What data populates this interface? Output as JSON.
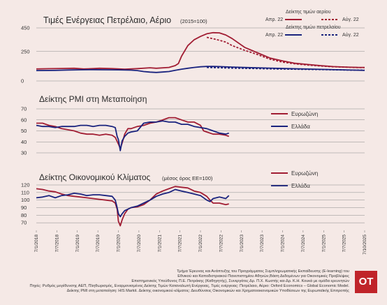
{
  "colors": {
    "red": "#a11d33",
    "navy": "#1a237e",
    "grid": "#8b8b8b",
    "bg": "#f5e9e6",
    "logo_bg": "#c0242a"
  },
  "x_axis": {
    "labels": [
      "7/1/2018",
      "7/7/2018",
      "7/1/2019",
      "7/7/2019",
      "7/1/2020",
      "7/7/2020",
      "7/1/2021",
      "7/7/2021",
      "7/1/2022",
      "7/7/2022",
      "7/1/2023",
      "7/7/2023",
      "7/1/2024",
      "7/7/2024",
      "7/1/2025",
      "7/7/2025",
      "7/10/2025"
    ]
  },
  "legend": {
    "energy_gas_title": "Δείκτης τιμών αερίου",
    "energy_oil_title": "Δείκτης τιμών πετρελαίου",
    "apr": "Απρ. 22",
    "aug": "Αύγ. 22",
    "eurozone": "Ευρωζώνη",
    "greece": "Ελλάδα"
  },
  "chart_data": [
    {
      "type": "line",
      "title": "Τιμές Ενέργειας Πετρέλαιο, Αέριο",
      "subtitle": "(2015=100)",
      "ylim": [
        0,
        450
      ],
      "yticks": [
        450,
        250,
        0
      ],
      "series": [
        {
          "name": "Δείκτης τιμών αερίου — Απρ. 22",
          "color": "#a11d33",
          "dash": false,
          "points": [
            [
              0,
              102
            ],
            [
              2,
              104
            ],
            [
              4,
              106
            ],
            [
              6,
              108
            ],
            [
              7.5,
              102
            ],
            [
              9,
              105
            ],
            [
              10,
              108
            ],
            [
              12,
              105
            ],
            [
              14,
              100
            ],
            [
              16,
              105
            ],
            [
              18,
              112
            ],
            [
              19,
              108
            ],
            [
              21,
              115
            ],
            [
              22,
              130
            ],
            [
              22.5,
              148
            ],
            [
              23,
              210
            ],
            [
              24,
              300
            ],
            [
              25,
              350
            ],
            [
              26,
              378
            ],
            [
              27,
              400
            ],
            [
              28,
              410
            ],
            [
              29,
              408
            ],
            [
              30,
              390
            ],
            [
              31,
              360
            ],
            [
              33,
              285
            ],
            [
              35,
              240
            ],
            [
              37,
              195
            ],
            [
              39,
              170
            ],
            [
              41,
              150
            ],
            [
              43,
              140
            ],
            [
              45,
              130
            ],
            [
              47,
              122
            ],
            [
              49,
              118
            ],
            [
              51,
              115
            ],
            [
              52,
              115
            ]
          ]
        },
        {
          "name": "Δείκτης τιμών αερίου — Αύγ. 22",
          "color": "#a11d33",
          "dash": true,
          "points": [
            [
              27,
              370
            ],
            [
              28,
              358
            ],
            [
              29,
              345
            ],
            [
              30,
              330
            ],
            [
              31,
              300
            ],
            [
              33,
              260
            ],
            [
              35,
              225
            ],
            [
              37,
              185
            ],
            [
              39,
              160
            ],
            [
              41,
              145
            ],
            [
              43,
              135
            ],
            [
              45,
              127
            ],
            [
              47,
              120
            ],
            [
              49,
              117
            ],
            [
              51,
              113
            ],
            [
              52,
              113
            ]
          ]
        },
        {
          "name": "Δείκτης τιμών πετρελαίου — Απρ. 22",
          "color": "#1a237e",
          "dash": false,
          "points": [
            [
              0,
              88
            ],
            [
              3,
              90
            ],
            [
              5,
              93
            ],
            [
              7,
              95
            ],
            [
              9,
              96
            ],
            [
              11,
              95
            ],
            [
              13,
              94
            ],
            [
              15,
              92
            ],
            [
              16,
              88
            ],
            [
              17,
              80
            ],
            [
              18,
              75
            ],
            [
              19,
              72
            ],
            [
              20,
              76
            ],
            [
              21,
              80
            ],
            [
              22,
              90
            ],
            [
              23,
              100
            ],
            [
              24,
              108
            ],
            [
              25,
              115
            ],
            [
              26,
              120
            ],
            [
              27,
              123
            ],
            [
              28,
              124
            ],
            [
              29,
              122
            ],
            [
              31,
              118
            ],
            [
              33,
              114
            ],
            [
              36,
              110
            ],
            [
              40,
              105
            ],
            [
              44,
              100
            ],
            [
              48,
              95
            ],
            [
              52,
              90
            ]
          ]
        },
        {
          "name": "Δείκτης τιμών πετρελαίου — Αύγ. 22",
          "color": "#1a237e",
          "dash": true,
          "points": [
            [
              27,
              115
            ],
            [
              29,
              112
            ],
            [
              31,
              109
            ],
            [
              34,
              106
            ],
            [
              38,
              102
            ],
            [
              42,
              99
            ],
            [
              46,
              96
            ],
            [
              50,
              92
            ],
            [
              52,
              91
            ]
          ]
        }
      ]
    },
    {
      "type": "line",
      "title": "Δείκτης PMI στη Μεταποίηση",
      "ylim": [
        30,
        70
      ],
      "yticks": [
        70,
        60,
        50,
        40,
        30
      ],
      "series": [
        {
          "name": "Ευρωζώνη",
          "color": "#a11d33",
          "points": [
            [
              0,
              57
            ],
            [
              1,
              57
            ],
            [
              2,
              55
            ],
            [
              3,
              54
            ],
            [
              4,
              52
            ],
            [
              5,
              51
            ],
            [
              6,
              50
            ],
            [
              7,
              48
            ],
            [
              8,
              47
            ],
            [
              9,
              47
            ],
            [
              10,
              46
            ],
            [
              11,
              47
            ],
            [
              12,
              46
            ],
            [
              12.5,
              44
            ],
            [
              13,
              38
            ],
            [
              13.3,
              34
            ],
            [
              13.6,
              39
            ],
            [
              14,
              47
            ],
            [
              14.5,
              52
            ],
            [
              15,
              52
            ],
            [
              16,
              54
            ],
            [
              17,
              55
            ],
            [
              18,
              57
            ],
            [
              19,
              58
            ],
            [
              20,
              60
            ],
            [
              21,
              62
            ],
            [
              22,
              62
            ],
            [
              23,
              60
            ],
            [
              24,
              58
            ],
            [
              25,
              58
            ],
            [
              26,
              55
            ],
            [
              26.5,
              50
            ],
            [
              27,
              49
            ],
            [
              28,
              47
            ],
            [
              29,
              47
            ],
            [
              30,
              46
            ],
            [
              30.5,
              45
            ]
          ]
        },
        {
          "name": "Ελλάδα",
          "color": "#1a237e",
          "points": [
            [
              0,
              55
            ],
            [
              1,
              54
            ],
            [
              2,
              54
            ],
            [
              3,
              53
            ],
            [
              4,
              54
            ],
            [
              5,
              54
            ],
            [
              6,
              54
            ],
            [
              7,
              55
            ],
            [
              8,
              55
            ],
            [
              9,
              54
            ],
            [
              10,
              55
            ],
            [
              11,
              55
            ],
            [
              12,
              54
            ],
            [
              12.5,
              53
            ],
            [
              12.8,
              45
            ],
            [
              13,
              42
            ],
            [
              13.3,
              32
            ],
            [
              13.6,
              41
            ],
            [
              14,
              45
            ],
            [
              14.5,
              48
            ],
            [
              15,
              49
            ],
            [
              16,
              50
            ],
            [
              17,
              57
            ],
            [
              18,
              58
            ],
            [
              19,
              58
            ],
            [
              20,
              59
            ],
            [
              21,
              58
            ],
            [
              22,
              58
            ],
            [
              23,
              56
            ],
            [
              24,
              56
            ],
            [
              25,
              54
            ],
            [
              26,
              53
            ],
            [
              27,
              52
            ],
            [
              28,
              50
            ],
            [
              29,
              48
            ],
            [
              30,
              47
            ],
            [
              30.5,
              48
            ]
          ]
        }
      ]
    },
    {
      "type": "line",
      "title": "Δείκτης Οικονομικού Κλίματος",
      "subtitle": "(μέσος όρος ΕΕ=100)",
      "ylim": [
        60,
        120
      ],
      "yticks": [
        120,
        110,
        100,
        90,
        80,
        70
      ],
      "series": [
        {
          "name": "Ευρωζώνη",
          "color": "#a11d33",
          "points": [
            [
              0,
              115
            ],
            [
              1,
              114
            ],
            [
              2,
              112
            ],
            [
              3,
              111
            ],
            [
              4,
              108
            ],
            [
              5,
              106
            ],
            [
              6,
              105
            ],
            [
              7,
              104
            ],
            [
              8,
              103
            ],
            [
              9,
              102
            ],
            [
              10,
              101
            ],
            [
              11,
              100
            ],
            [
              12,
              99
            ],
            [
              12.5,
              96
            ],
            [
              12.8,
              88
            ],
            [
              13,
              72
            ],
            [
              13.3,
              66
            ],
            [
              13.6,
              74
            ],
            [
              14,
              82
            ],
            [
              14.5,
              88
            ],
            [
              15,
              90
            ],
            [
              16,
              91
            ],
            [
              17,
              94
            ],
            [
              18,
              100
            ],
            [
              19,
              108
            ],
            [
              20,
              112
            ],
            [
              21,
              115
            ],
            [
              22,
              118
            ],
            [
              23,
              117
            ],
            [
              24,
              116
            ],
            [
              25,
              112
            ],
            [
              26,
              110
            ],
            [
              27,
              105
            ],
            [
              27.5,
              100
            ],
            [
              28,
              96
            ],
            [
              29,
              96
            ],
            [
              30,
              94
            ],
            [
              30.5,
              95
            ]
          ]
        },
        {
          "name": "Ελλάδα",
          "color": "#1a237e",
          "points": [
            [
              0,
              103
            ],
            [
              1,
              104
            ],
            [
              2,
              106
            ],
            [
              3,
              103
            ],
            [
              4,
              106
            ],
            [
              5,
              107
            ],
            [
              6,
              109
            ],
            [
              7,
              108
            ],
            [
              8,
              106
            ],
            [
              9,
              107
            ],
            [
              10,
              107
            ],
            [
              11,
              106
            ],
            [
              12,
              105
            ],
            [
              12.5,
              100
            ],
            [
              12.8,
              90
            ],
            [
              13,
              82
            ],
            [
              13.3,
              78
            ],
            [
              13.6,
              82
            ],
            [
              14,
              86
            ],
            [
              14.5,
              88
            ],
            [
              15,
              90
            ],
            [
              16,
              92
            ],
            [
              17,
              96
            ],
            [
              18,
              100
            ],
            [
              19,
              105
            ],
            [
              20,
              108
            ],
            [
              21,
              110
            ],
            [
              22,
              114
            ],
            [
              23,
              112
            ],
            [
              24,
              110
            ],
            [
              25,
              108
            ],
            [
              26,
              106
            ],
            [
              27,
              100
            ],
            [
              27.5,
              98
            ],
            [
              28,
              102
            ],
            [
              29,
              104
            ],
            [
              30,
              102
            ],
            [
              30.5,
              106
            ]
          ]
        }
      ]
    }
  ],
  "footnotes": [
    "Τμήμα Έρευνας και Ανάπτυξης του Προγράμματος Συμπληρωματικής Εκπαίδευσης (E-learning) του",
    "Εθνικού και Καποδιστριακού Πανεπιστημίου Αθηνών,Βάση Δεδομένων για Οικονομικές Προβλέψεις",
    "Επιστημονικός Υπεύθυνος Π.Ε. Πετράκης (Καθηγητής), Συνεργάτες Δρ. Π.Χ. Κωστής και Δρ. Κ.Η. Κουκά με ομάδα ερευνητών",
    "Πηγές: Ρυθμός μεγέθυνσης ΑΕΠ, Πληθωρισμός, Εναρμονισμένος Δείκτης Τιμών Καταναλωτή Ενέργειας, Τιμές ενέργειας: Πετρέλαιο, Αέριο: Oxford Economics – Global Economic Model.",
    "Δείκτης PMI στη μεταποίηση: HIS Markit. Δείκτης οικονομικού κλίματος: Διευθύνσεις Οικονομικών και Χρηματοοικονομικών Υποθέσεων της Ευρωπαϊκής Επιτροπής"
  ],
  "logo": {
    "text": "OT"
  }
}
